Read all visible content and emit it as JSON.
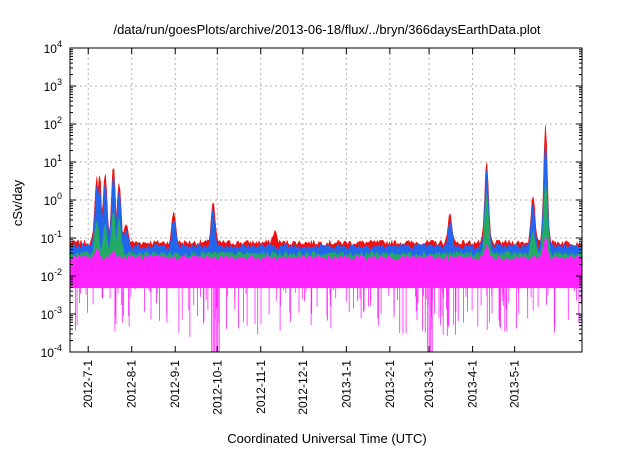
{
  "chart_data": {
    "type": "area",
    "title": "/data/run/goesPlots/archive/2013-06-18/flux/../bryn/366daysEarthData.plot",
    "xlabel": "Coordinated Universal Time (UTC)",
    "ylabel": "cSv/day",
    "yscale": "log",
    "ylim": [
      0.0001,
      10000
    ],
    "xlim": [
      "2012-06-18",
      "2013-06-18"
    ],
    "grid": true,
    "y_ticks": [
      {
        "base": "10",
        "exp": "-4",
        "value": 0.0001
      },
      {
        "base": "10",
        "exp": "-3",
        "value": 0.001
      },
      {
        "base": "10",
        "exp": "-2",
        "value": 0.01
      },
      {
        "base": "10",
        "exp": "-1",
        "value": 0.1
      },
      {
        "base": "10",
        "exp": "0",
        "value": 1
      },
      {
        "base": "10",
        "exp": "1",
        "value": 10
      },
      {
        "base": "10",
        "exp": "2",
        "value": 100
      },
      {
        "base": "10",
        "exp": "3",
        "value": 1000
      },
      {
        "base": "10",
        "exp": "4",
        "value": 10000
      }
    ],
    "x_ticks": [
      {
        "label": "2012-7-1",
        "date": "2012-07-01"
      },
      {
        "label": "2012-8-1",
        "date": "2012-08-01"
      },
      {
        "label": "2012-9-1",
        "date": "2012-09-01"
      },
      {
        "label": "2012-10-1",
        "date": "2012-10-01"
      },
      {
        "label": "2012-11-1",
        "date": "2012-11-01"
      },
      {
        "label": "2012-12-1",
        "date": "2012-12-01"
      },
      {
        "label": "2013-1-1",
        "date": "2013-01-01"
      },
      {
        "label": "2013-2-1",
        "date": "2013-02-01"
      },
      {
        "label": "2013-3-1",
        "date": "2013-03-01"
      },
      {
        "label": "2013-4-1",
        "date": "2013-04-01"
      },
      {
        "label": "2013-5-1",
        "date": "2013-05-01"
      }
    ],
    "series": [
      {
        "color": "#ee1111",
        "baseline": 0.075,
        "peaks": [
          {
            "x": "2012-07-07",
            "y": 4
          },
          {
            "x": "2012-07-09",
            "y": 5
          },
          {
            "x": "2012-07-13",
            "y": 6
          },
          {
            "x": "2012-07-19",
            "y": 9
          },
          {
            "x": "2012-07-23",
            "y": 3
          },
          {
            "x": "2012-07-28",
            "y": 0.25
          },
          {
            "x": "2012-08-31",
            "y": 0.5
          },
          {
            "x": "2012-09-28",
            "y": 0.9
          },
          {
            "x": "2012-11-11",
            "y": 0.15
          },
          {
            "x": "2013-03-16",
            "y": 0.45
          },
          {
            "x": "2013-04-11",
            "y": 10
          },
          {
            "x": "2013-05-14",
            "y": 1.5
          },
          {
            "x": "2013-05-23",
            "y": 100
          }
        ]
      },
      {
        "color": "#2266ee",
        "baseline": 0.06,
        "peaks": [
          {
            "x": "2012-07-07",
            "y": 2
          },
          {
            "x": "2012-07-09",
            "y": 2.5
          },
          {
            "x": "2012-07-13",
            "y": 3
          },
          {
            "x": "2012-07-19",
            "y": 5
          },
          {
            "x": "2012-07-23",
            "y": 2
          },
          {
            "x": "2012-07-28",
            "y": 0.15
          },
          {
            "x": "2012-08-31",
            "y": 0.3
          },
          {
            "x": "2012-09-28",
            "y": 0.5
          },
          {
            "x": "2013-03-16",
            "y": 0.3
          },
          {
            "x": "2013-04-11",
            "y": 6
          },
          {
            "x": "2013-05-14",
            "y": 0.8
          },
          {
            "x": "2013-05-23",
            "y": 40
          }
        ]
      },
      {
        "color": "#22aa66",
        "baseline": 0.038,
        "peaks": [
          {
            "x": "2012-07-07",
            "y": 0.3
          },
          {
            "x": "2012-07-13",
            "y": 0.2
          },
          {
            "x": "2012-07-19",
            "y": 0.5
          },
          {
            "x": "2012-07-23",
            "y": 0.3
          },
          {
            "x": "2013-04-11",
            "y": 1.5
          },
          {
            "x": "2013-05-14",
            "y": 0.15
          },
          {
            "x": "2013-05-23",
            "y": 3
          }
        ]
      },
      {
        "color": "#ff22ff",
        "baseline": 0.03,
        "peaks": [
          {
            "x": "2012-07-07",
            "y": 0.05
          },
          {
            "x": "2012-07-19",
            "y": 0.05
          },
          {
            "x": "2013-04-11",
            "y": 0.06
          },
          {
            "x": "2013-05-23",
            "y": 0.1
          }
        ],
        "low": 0.0048,
        "dropouts": [
          {
            "from": "2012-09-27",
            "to": "2012-10-03",
            "y": 0.0001
          },
          {
            "from": "2013-02-28",
            "to": "2013-03-04",
            "y": 0.0001
          }
        ]
      }
    ]
  }
}
